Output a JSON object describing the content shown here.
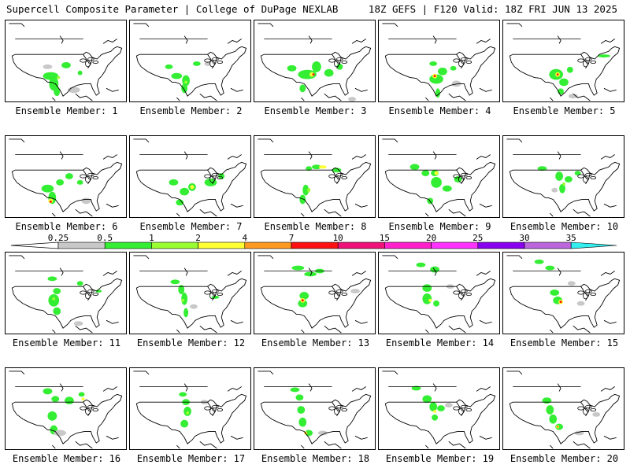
{
  "header": {
    "title_left": "Supercell Composite Parameter | College of DuPage NEXLAB",
    "title_right": "18Z GEFS | F120 Valid: 18Z FRI JUN 13 2025"
  },
  "colorbar": {
    "ticks": [
      "0.25",
      "0.5",
      "1",
      "2",
      "4",
      "7",
      "10",
      "15",
      "20",
      "25",
      "30",
      "35"
    ],
    "colors": [
      "#c8c8c8",
      "#33ee33",
      "#99ff33",
      "#ffff33",
      "#ff9922",
      "#ff1111",
      "#ee1177",
      "#ff22cc",
      "#ff33ff",
      "#8800ee",
      "#bb66dd",
      "#33eeee"
    ]
  },
  "members": [
    {
      "label": "Ensemble Member: 1"
    },
    {
      "label": "Ensemble Member: 2"
    },
    {
      "label": "Ensemble Member: 3"
    },
    {
      "label": "Ensemble Member: 4"
    },
    {
      "label": "Ensemble Member: 5"
    },
    {
      "label": "Ensemble Member: 6"
    },
    {
      "label": "Ensemble Member: 7"
    },
    {
      "label": "Ensemble Member: 8"
    },
    {
      "label": "Ensemble Member: 9"
    },
    {
      "label": "Ensemble Member: 10"
    },
    {
      "label": "Ensemble Member: 11"
    },
    {
      "label": "Ensemble Member: 12"
    },
    {
      "label": "Ensemble Member: 13"
    },
    {
      "label": "Ensemble Member: 14"
    },
    {
      "label": "Ensemble Member: 15"
    },
    {
      "label": "Ensemble Member: 16"
    },
    {
      "label": "Ensemble Member: 17"
    },
    {
      "label": "Ensemble Member: 18"
    },
    {
      "label": "Ensemble Member: 19"
    },
    {
      "label": "Ensemble Member: 20"
    }
  ]
}
